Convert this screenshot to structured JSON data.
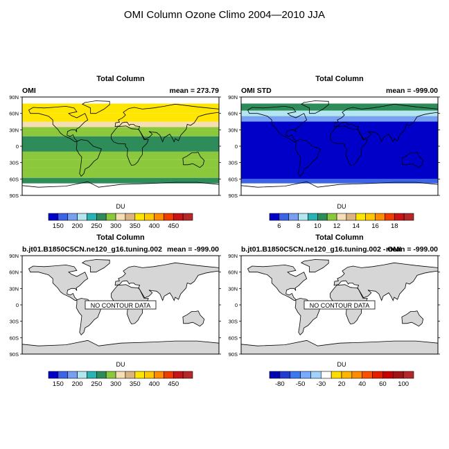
{
  "figure_title": "OMI Column Ozone Climo 2004—2010 JJA",
  "lat_ticks": [
    "90N",
    "60N",
    "30N",
    "0",
    "30S",
    "60S",
    "90S"
  ],
  "colorbar_unit": "DU",
  "no_data_text": "NO CONTOUR DATA",
  "land_color": "#d6d6d6",
  "colormaps": {
    "ozone": {
      "colors": [
        "#0000c8",
        "#3c64e6",
        "#78a0f0",
        "#b4e6f0",
        "#28b4b4",
        "#2d8c5a",
        "#8cc83c",
        "#f5deb4",
        "#dcb482",
        "#ffe600",
        "#ffc800",
        "#ff8c00",
        "#f03c00",
        "#c81414",
        "#b42828"
      ],
      "labels": [
        "150",
        "200",
        "250",
        "300",
        "350",
        "400",
        "450"
      ]
    },
    "std": {
      "colors": [
        "#0000c8",
        "#3c64e6",
        "#78a0f0",
        "#b4e6f0",
        "#28b4b4",
        "#2d8c5a",
        "#8cc83c",
        "#f5deb4",
        "#dcb482",
        "#ffe600",
        "#ffc800",
        "#ff8c00",
        "#f03c00",
        "#c81414",
        "#b42828"
      ],
      "labels": [
        "6",
        "8",
        "10",
        "12",
        "14",
        "16",
        "18"
      ]
    },
    "diff": {
      "colors": [
        "#0000b4",
        "#1e3cd2",
        "#3c78f0",
        "#78aaff",
        "#a0d2ff",
        "#ffffff",
        "#ffdc00",
        "#ffb400",
        "#ff8c00",
        "#ff5000",
        "#e61e00",
        "#c80000",
        "#a01414",
        "#b42828"
      ],
      "labels": [
        "-80",
        "-50",
        "-30",
        "20",
        "40",
        "60",
        "100"
      ]
    }
  },
  "panels": [
    {
      "title": "Total Column",
      "left_label": "OMI",
      "right_label": "mean = 273.79",
      "colormap": "ozone",
      "no_data": false
    },
    {
      "title": "Total Column",
      "left_label": "OMI STD",
      "right_label": "mean = -999.00",
      "colormap": "std",
      "no_data": false
    },
    {
      "title": "Total Column",
      "left_label": "b.jt01.B1850C5CN.ne120_g16.tuning.002",
      "right_label": "mean = -999.00",
      "colormap": "ozone",
      "no_data": true
    },
    {
      "title": "Total Column",
      "left_label": "b.jt01.B1850C5CN.ne120_g16.tuning.002 - OMI",
      "right_label": "mean = -999.00",
      "colormap": "diff",
      "no_data": true
    }
  ],
  "chart_data": [
    {
      "type": "heatmap",
      "title": "Total Column",
      "series_label": "OMI",
      "mean": 273.79,
      "unit": "DU",
      "colorbar_ticks": [
        150,
        200,
        250,
        300,
        350,
        400,
        450
      ],
      "zonal_bands": [
        {
          "lat_from": 90,
          "lat_to": 78,
          "value": null
        },
        {
          "lat_from": 78,
          "lat_to": 60,
          "value": 360
        },
        {
          "lat_from": 60,
          "lat_to": 45,
          "value": 340
        },
        {
          "lat_from": 45,
          "lat_to": 35,
          "value": 310
        },
        {
          "lat_from": 35,
          "lat_to": 28,
          "value": 280
        },
        {
          "lat_from": 28,
          "lat_to": 18,
          "value": 265
        },
        {
          "lat_from": 18,
          "lat_to": -10,
          "value": 255
        },
        {
          "lat_from": -10,
          "lat_to": -25,
          "value": 265
        },
        {
          "lat_from": -25,
          "lat_to": -40,
          "value": 285
        },
        {
          "lat_from": -40,
          "lat_to": -58,
          "value": 280
        },
        {
          "lat_from": -58,
          "lat_to": -68,
          "value": 250
        },
        {
          "lat_from": -68,
          "lat_to": -90,
          "value": null
        }
      ]
    },
    {
      "type": "heatmap",
      "title": "Total Column",
      "series_label": "OMI STD",
      "mean": -999.0,
      "colorbar_ticks": [
        6,
        8,
        10,
        12,
        14,
        16,
        18
      ],
      "zonal_bands": [
        {
          "lat_from": 90,
          "lat_to": 78,
          "value": null
        },
        {
          "lat_from": 78,
          "lat_to": 65,
          "value": 10
        },
        {
          "lat_from": 65,
          "lat_to": 55,
          "value": 8
        },
        {
          "lat_from": 55,
          "lat_to": 45,
          "value": 7
        },
        {
          "lat_from": 45,
          "lat_to": -60,
          "value": 5
        },
        {
          "lat_from": -60,
          "lat_to": -68,
          "value": 6
        },
        {
          "lat_from": -68,
          "lat_to": -90,
          "value": null
        }
      ]
    },
    {
      "type": "heatmap",
      "title": "Total Column",
      "series_label": "b.jt01.B1850C5CN.ne120_g16.tuning.002",
      "mean": -999.0,
      "colorbar_ticks": [
        150,
        200,
        250,
        300,
        350,
        400,
        450
      ],
      "zonal_bands": []
    },
    {
      "type": "heatmap",
      "title": "Total Column",
      "series_label": "b.jt01.B1850C5CN.ne120_g16.tuning.002 - OMI",
      "mean": -999.0,
      "colorbar_ticks": [
        -80,
        -50,
        -30,
        20,
        40,
        60,
        100
      ],
      "zonal_bands": []
    }
  ]
}
